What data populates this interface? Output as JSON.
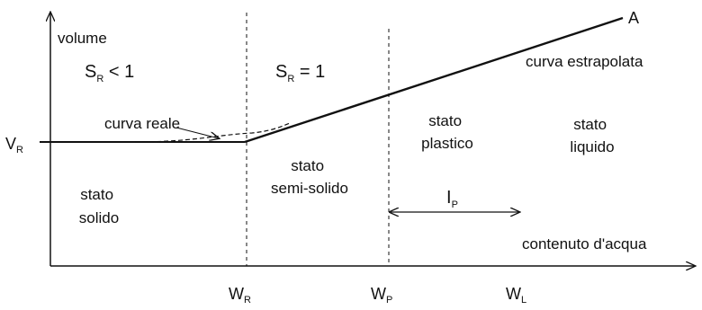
{
  "axes": {
    "y_label": "volume",
    "x_label": "contenuto d'acqua",
    "y_tick": {
      "main": "V",
      "sub": "R"
    },
    "x_ticks": [
      {
        "main": "W",
        "sub": "R"
      },
      {
        "main": "W",
        "sub": "P"
      },
      {
        "main": "W",
        "sub": "L"
      }
    ]
  },
  "regions": {
    "sr_less": {
      "main": "S",
      "sub": "R",
      "rest": " < 1"
    },
    "sr_equal": {
      "main": "S",
      "sub": "R",
      "rest": " = 1"
    },
    "solid": [
      "stato",
      "solido"
    ],
    "semisolid": [
      "stato",
      "semi-solido"
    ],
    "plastic": [
      "stato",
      "plastico"
    ],
    "liquid": [
      "stato",
      "liquido"
    ]
  },
  "curves": {
    "real": "curva reale",
    "extrapolated": "curva estrapolata",
    "point": "A"
  },
  "interval": {
    "main": "I",
    "sub": "P"
  },
  "colors": {
    "ink": "#111111",
    "background": "#ffffff"
  }
}
